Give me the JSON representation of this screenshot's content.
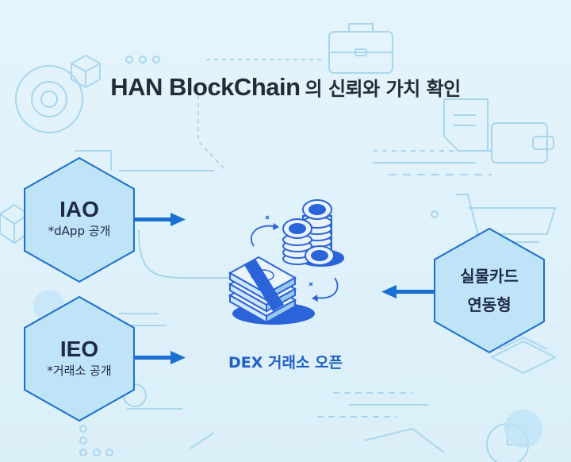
{
  "title": {
    "main": "HAN BlockChain",
    "sub": "의 신뢰와 가치 확인"
  },
  "nodes": {
    "iao": {
      "label": "IAO",
      "sub": "*dApp 공개"
    },
    "ieo": {
      "label": "IEO",
      "sub": "*거래소 공개"
    },
    "card": {
      "line1": "실물카드",
      "line2": "연동형"
    }
  },
  "center": {
    "label": "DEX 거래소 오픈"
  },
  "colors": {
    "background": "#dff1fb",
    "hex_fill": "#bfe3f7",
    "hex_stroke": "#1a6fd1",
    "arrow": "#1a6fd1",
    "title": "#252b37",
    "dex_label": "#1f5fc7",
    "decor_line": "#a9d6ee"
  },
  "icons": [
    "cube-icon",
    "circle-target-icon",
    "briefcase-icon",
    "wallet-icon",
    "document-icon",
    "shopping-cart-icon",
    "pie-chart-icon",
    "bitcoin-coin-stack-icon",
    "money-bundle-icon"
  ]
}
